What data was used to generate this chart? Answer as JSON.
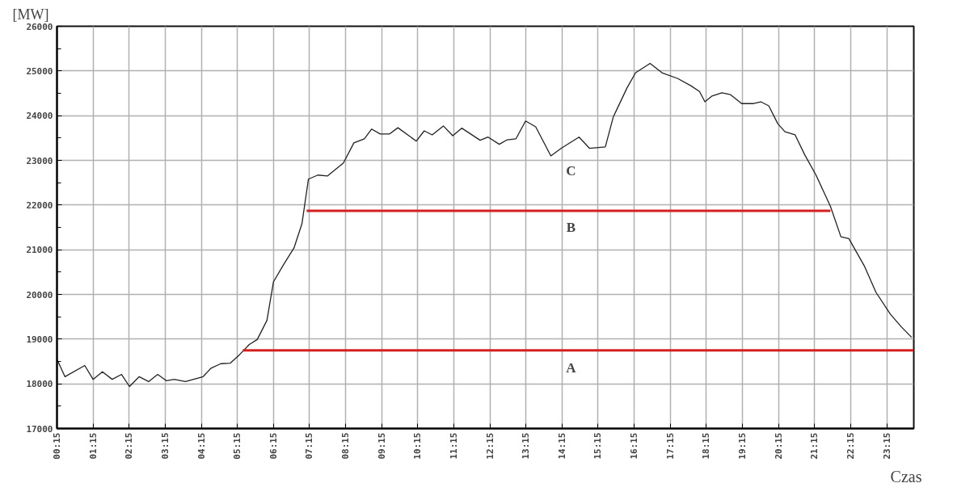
{
  "chart_data": {
    "type": "line",
    "ylabel": "[MW]",
    "xlabel": "Czas",
    "xlim": [
      0.25,
      24.0
    ],
    "ylim": [
      17000,
      26000
    ],
    "xticks": [
      {
        "value": 0.25,
        "label": "00:15"
      },
      {
        "value": 1.25,
        "label": "01:15"
      },
      {
        "value": 2.25,
        "label": "02:15"
      },
      {
        "value": 3.25,
        "label": "03:15"
      },
      {
        "value": 4.25,
        "label": "04:15"
      },
      {
        "value": 5.25,
        "label": "05:15"
      },
      {
        "value": 6.25,
        "label": "06:15"
      },
      {
        "value": 7.25,
        "label": "07:15"
      },
      {
        "value": 8.25,
        "label": "08:15"
      },
      {
        "value": 9.25,
        "label": "09:15"
      },
      {
        "value": 10.25,
        "label": "10:15"
      },
      {
        "value": 11.25,
        "label": "11:15"
      },
      {
        "value": 12.25,
        "label": "12:15"
      },
      {
        "value": 13.25,
        "label": "13:15"
      },
      {
        "value": 14.25,
        "label": "14:15"
      },
      {
        "value": 15.25,
        "label": "15:15"
      },
      {
        "value": 16.25,
        "label": "16:15"
      },
      {
        "value": 17.25,
        "label": "17:15"
      },
      {
        "value": 18.25,
        "label": "18:15"
      },
      {
        "value": 19.25,
        "label": "19:15"
      },
      {
        "value": 20.25,
        "label": "20:15"
      },
      {
        "value": 21.25,
        "label": "21:15"
      },
      {
        "value": 22.25,
        "label": "22:15"
      },
      {
        "value": 23.25,
        "label": "23:15"
      }
    ],
    "yticks": [
      17000,
      18000,
      19000,
      20000,
      21000,
      22000,
      23000,
      24000,
      25000,
      26000
    ],
    "grid": true,
    "series": [
      {
        "color": "#222222",
        "x": [
          0.25,
          0.47,
          1.02,
          1.25,
          1.51,
          1.78,
          2.04,
          2.26,
          2.53,
          2.79,
          3.04,
          3.28,
          3.5,
          3.81,
          4.3,
          4.52,
          4.79,
          5.05,
          5.32,
          5.58,
          5.8,
          6.07,
          6.25,
          6.51,
          6.82,
          7.04,
          7.22,
          7.48,
          7.75,
          8.19,
          8.48,
          8.77,
          8.97,
          9.21,
          9.47,
          9.7,
          10.21,
          10.43,
          10.65,
          10.96,
          11.22,
          11.47,
          11.98,
          12.2,
          12.51,
          12.73,
          12.97,
          13.24,
          13.52,
          13.94,
          14.23,
          14.72,
          15.01,
          15.45,
          15.67,
          16.05,
          16.29,
          16.69,
          17.02,
          17.46,
          17.82,
          18.06,
          18.21,
          18.41,
          18.68,
          18.92,
          19.23,
          19.56,
          19.76,
          19.98,
          20.23,
          20.43,
          20.71,
          20.98,
          21.29,
          21.69,
          21.98,
          22.2,
          22.64,
          22.95,
          23.35,
          23.66,
          23.94
        ],
        "values": [
          18550,
          18160,
          18410,
          18100,
          18270,
          18100,
          18210,
          17940,
          18160,
          18050,
          18210,
          18070,
          18100,
          18050,
          18160,
          18350,
          18450,
          18460,
          18660,
          18880,
          18990,
          19420,
          20280,
          20640,
          21040,
          21580,
          22580,
          22670,
          22650,
          22940,
          23390,
          23480,
          23700,
          23590,
          23590,
          23730,
          23430,
          23660,
          23570,
          23770,
          23550,
          23720,
          23450,
          23520,
          23360,
          23460,
          23480,
          23880,
          23750,
          23100,
          23270,
          23520,
          23270,
          23300,
          23970,
          24620,
          24960,
          25170,
          24960,
          24830,
          24670,
          24540,
          24310,
          24440,
          24510,
          24470,
          24270,
          24270,
          24310,
          24220,
          23820,
          23640,
          23570,
          23120,
          22670,
          21970,
          21290,
          21250,
          20620,
          20050,
          19560,
          19270,
          19040
        ]
      },
      {
        "color": "#d42020",
        "x": [
          5.4,
          24.0
        ],
        "values": [
          18750,
          18750
        ]
      },
      {
        "color": "#d42020",
        "x": [
          7.17,
          21.69
        ],
        "values": [
          21870,
          21870
        ]
      }
    ],
    "annotations": [
      "C",
      "B",
      "A"
    ]
  }
}
